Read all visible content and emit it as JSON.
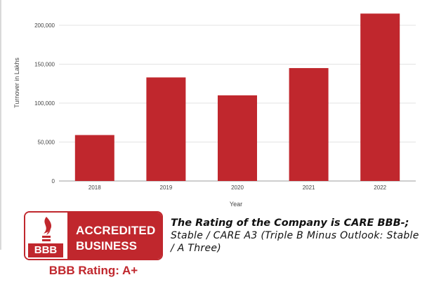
{
  "chart_data": {
    "type": "bar",
    "categories": [
      "2018",
      "2019",
      "2020",
      "2021",
      "2022"
    ],
    "values": [
      59000,
      133000,
      110000,
      145000,
      215000
    ],
    "xlabel": "Year",
    "ylabel": "Turnover in Lakhs",
    "ylim": [
      0,
      200000
    ],
    "yticks": [
      "0",
      "50,000",
      "100,000",
      "150,000",
      "200,000"
    ],
    "ytick_values": [
      0,
      50000,
      100000,
      150000,
      200000
    ],
    "grid": true,
    "legend": "none",
    "bar_color": "#c0272d"
  },
  "badge": {
    "abbr": "BBB",
    "line1": "ACCREDITED",
    "line2": "BUSINESS",
    "rating_label": "BBB Rating: A+",
    "color": "#c0272d"
  },
  "rating_note": {
    "bold": "The Rating of the Company is CARE BBB-;",
    "rest": "Stable / CARE A3 (Triple B Minus Outlook: Stable / A Three)"
  }
}
